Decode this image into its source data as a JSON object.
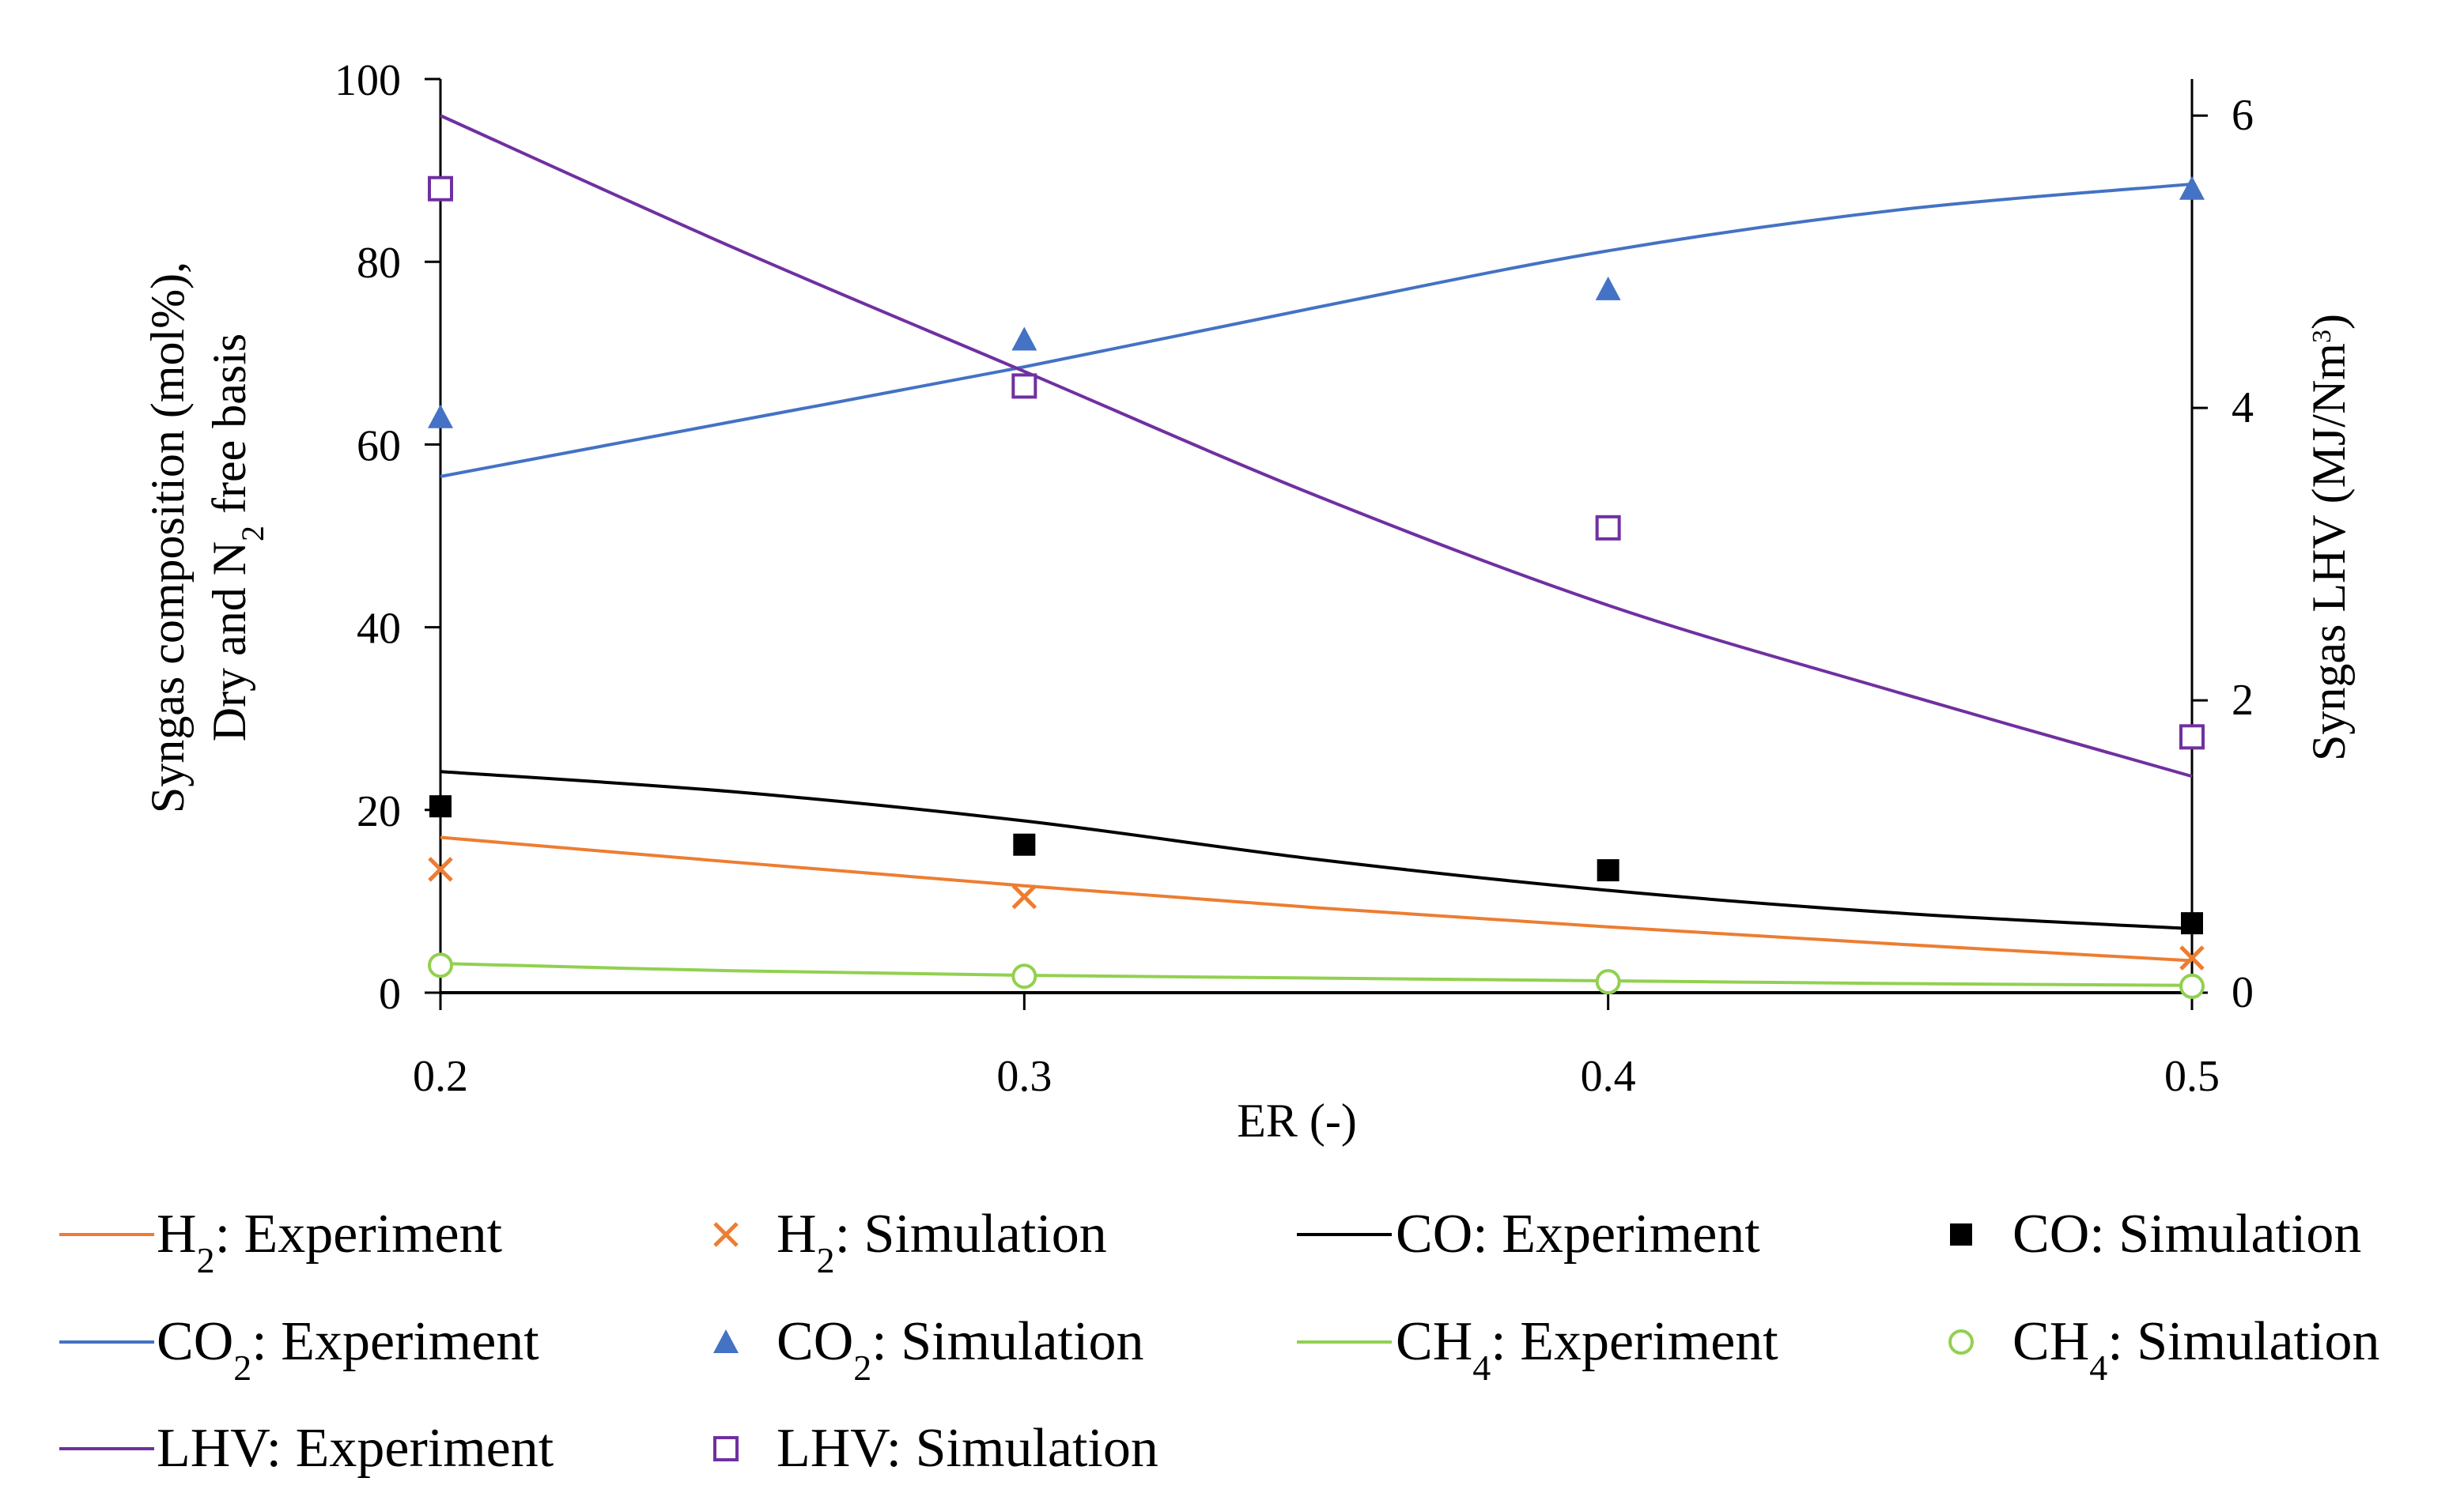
{
  "chart_data": {
    "type": "line",
    "x_axis": {
      "label": "ER (-)",
      "min": 0.2,
      "max": 0.5,
      "ticks": [
        "0.2",
        "0.3",
        "0.4",
        "0.5"
      ]
    },
    "y_axis_left": {
      "label_line1": "Syngas composition (mol%),",
      "label_line2_pre": "Dry and N",
      "label_line2_sub": "2",
      "label_line2_post": " free basis",
      "min": 0,
      "max": 100,
      "ticks": [
        "0",
        "20",
        "40",
        "60",
        "80",
        "100"
      ]
    },
    "y_axis_right": {
      "label_pre": "Syngas LHV (MJ/Nm",
      "label_sup": "3",
      "label_post": ")",
      "min": 0,
      "max": 6.25,
      "ticks": [
        "0",
        "2",
        "4",
        "6"
      ]
    },
    "x": [
      0.2,
      0.3,
      0.4,
      0.5
    ],
    "lines": [
      {
        "id": "h2-exp",
        "axis": "left",
        "color": "#ED7D31",
        "x": [
          0.2,
          0.25,
          0.3,
          0.35,
          0.4,
          0.45,
          0.5
        ],
        "y": [
          17.0,
          14.3,
          11.7,
          9.3,
          7.2,
          5.3,
          3.5
        ]
      },
      {
        "id": "co-exp",
        "axis": "left",
        "color": "#000000",
        "x": [
          0.2,
          0.25,
          0.3,
          0.35,
          0.4,
          0.45,
          0.5
        ],
        "y": [
          24.2,
          22.0,
          18.8,
          14.6,
          11.2,
          8.7,
          7.0
        ]
      },
      {
        "id": "co2-exp",
        "axis": "left",
        "color": "#4472C4",
        "x": [
          0.2,
          0.25,
          0.3,
          0.35,
          0.4,
          0.45,
          0.5
        ],
        "y": [
          56.5,
          62.5,
          68.5,
          75.0,
          81.2,
          85.7,
          88.5
        ]
      },
      {
        "id": "ch4-exp",
        "axis": "left",
        "color": "#92D050",
        "x": [
          0.2,
          0.25,
          0.3,
          0.35,
          0.4,
          0.45,
          0.5
        ],
        "y": [
          3.2,
          2.4,
          1.9,
          1.6,
          1.3,
          1.0,
          0.8
        ]
      },
      {
        "id": "lhv-exp",
        "axis": "right",
        "color": "#7030A0",
        "x": [
          0.2,
          0.25,
          0.3,
          0.35,
          0.4,
          0.45,
          0.5
        ],
        "y": [
          6.0,
          5.1,
          4.25,
          3.4,
          2.65,
          2.05,
          1.48
        ]
      }
    ],
    "markers": [
      {
        "id": "h2-sim",
        "axis": "left",
        "shape": "x",
        "color": "#ED7D31",
        "x": [
          0.2,
          0.3,
          0.4,
          0.5
        ],
        "y": [
          13.5,
          10.5,
          null,
          3.8
        ]
      },
      {
        "id": "co-sim",
        "axis": "left",
        "shape": "square-filled",
        "color": "#000000",
        "x": [
          0.2,
          0.3,
          0.4,
          0.5
        ],
        "y": [
          20.4,
          16.2,
          13.4,
          7.6
        ]
      },
      {
        "id": "co2-sim",
        "axis": "left",
        "shape": "triangle",
        "color": "#4472C4",
        "x": [
          0.2,
          0.3,
          0.4,
          0.5
        ],
        "y": [
          63.0,
          71.5,
          77.0,
          88.0
        ]
      },
      {
        "id": "ch4-sim",
        "axis": "left",
        "shape": "circle-open",
        "color": "#92D050",
        "x": [
          0.2,
          0.3,
          0.4,
          0.5
        ],
        "y": [
          3.0,
          1.8,
          1.2,
          0.7
        ]
      },
      {
        "id": "lhv-sim",
        "axis": "right",
        "shape": "square-open",
        "color": "#7030A0",
        "x": [
          0.2,
          0.3,
          0.4,
          0.5
        ],
        "y": [
          5.5,
          4.15,
          3.18,
          1.75
        ]
      }
    ],
    "legend": [
      {
        "id": "h2-exp",
        "kind": "line",
        "color": "#ED7D31",
        "pre": "H",
        "sub": "2",
        "post": ": Experiment"
      },
      {
        "id": "h2-sim",
        "kind": "x",
        "color": "#ED7D31",
        "pre": "H",
        "sub": "2",
        "post": ": Simulation"
      },
      {
        "id": "co-exp",
        "kind": "line",
        "color": "#000000",
        "pre": "CO: Experiment",
        "sub": "",
        "post": ""
      },
      {
        "id": "co-sim",
        "kind": "square-filled",
        "color": "#000000",
        "pre": "CO: Simulation",
        "sub": "",
        "post": ""
      },
      {
        "id": "co2-exp",
        "kind": "line",
        "color": "#4472C4",
        "pre": "CO",
        "sub": "2",
        "post": ": Experiment"
      },
      {
        "id": "co2-sim",
        "kind": "triangle",
        "color": "#4472C4",
        "pre": "CO",
        "sub": "2",
        "post": ": Simulation"
      },
      {
        "id": "ch4-exp",
        "kind": "line",
        "color": "#92D050",
        "pre": "CH",
        "sub": "4",
        "post": ": Experiment"
      },
      {
        "id": "ch4-sim",
        "kind": "circle-open",
        "color": "#92D050",
        "pre": "CH",
        "sub": "4",
        "post": ": Simulation"
      },
      {
        "id": "lhv-exp",
        "kind": "line",
        "color": "#7030A0",
        "pre": "LHV: Experiment",
        "sub": "",
        "post": ""
      },
      {
        "id": "lhv-sim",
        "kind": "square-open",
        "color": "#7030A0",
        "pre": "LHV: Simulation",
        "sub": "",
        "post": ""
      }
    ]
  }
}
